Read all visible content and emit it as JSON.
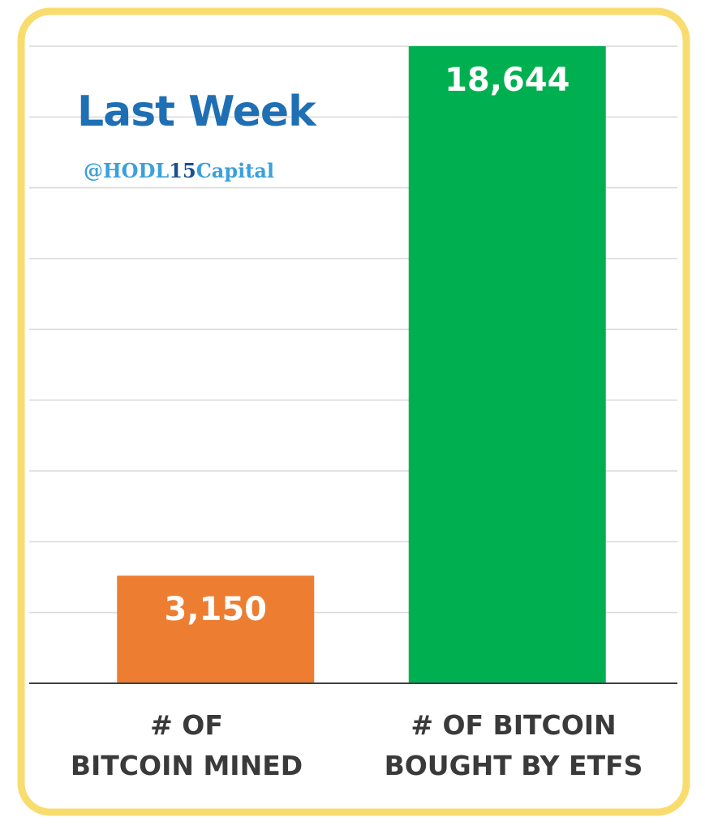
{
  "watermark": {
    "prefix": "@HODL",
    "number": "15",
    "suffix": "Capital"
  },
  "colors": {
    "frame": "#f8dc6e",
    "gridline": "#d9d9d9",
    "axis": "#404040",
    "title": "#1f6fb4",
    "label": "#3a3a3a",
    "data_label": "#ffffff"
  },
  "chart_data": {
    "type": "bar",
    "title": "Last Week",
    "categories": [
      {
        "line1": "# OF",
        "line2": "BITCOIN MINED"
      },
      {
        "line1": "# OF BITCOIN",
        "line2": "BOUGHT BY ETFS"
      }
    ],
    "values": [
      3150,
      18644
    ],
    "data_labels": [
      "3,150",
      "18,644"
    ],
    "bar_colors": [
      "#ed7d31",
      "#00b050"
    ],
    "ylim": [
      0,
      18644
    ],
    "y_gridlines": 9,
    "grid": true,
    "legend": "none",
    "xlabel": "",
    "ylabel": ""
  }
}
